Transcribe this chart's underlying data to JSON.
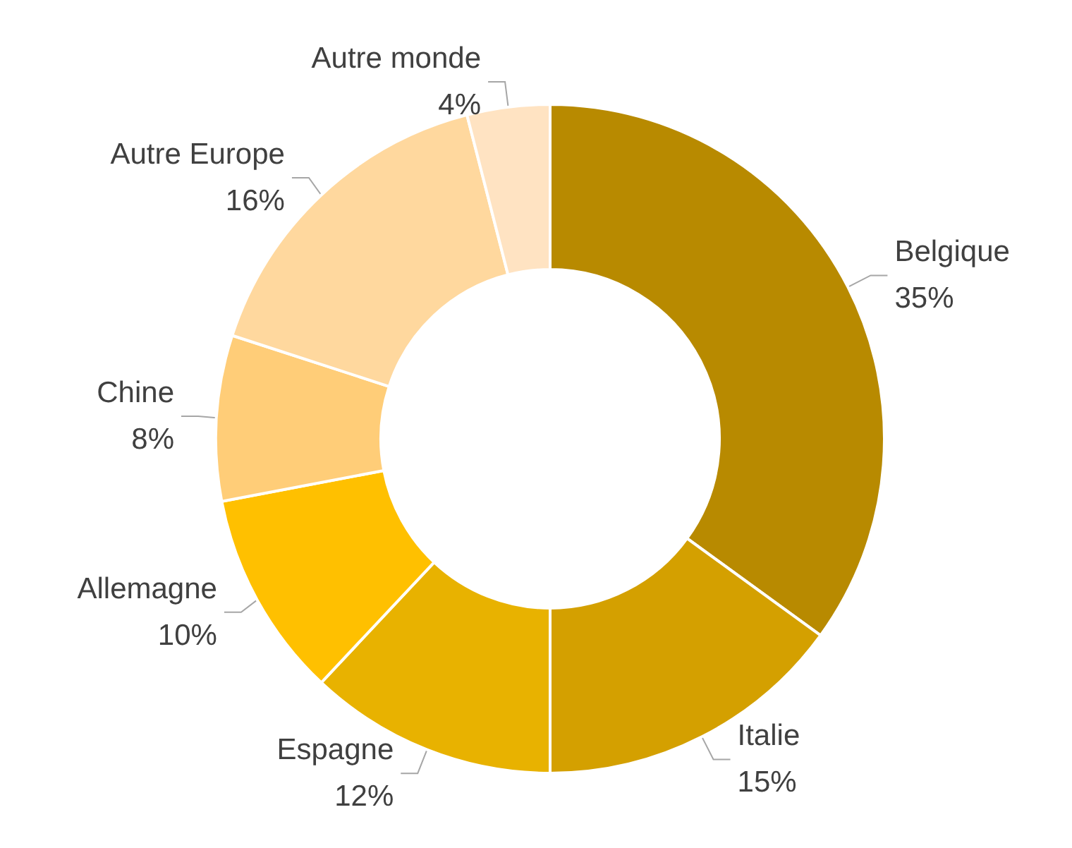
{
  "chart_data": {
    "type": "donut",
    "categories": [
      "Belgique",
      "Italie",
      "Espagne",
      "Allemagne",
      "Chine",
      "Autre Europe",
      "Autre monde"
    ],
    "values": [
      35,
      15,
      12,
      10,
      8,
      16,
      4
    ],
    "value_labels": [
      "35%",
      "15%",
      "12%",
      "10%",
      "8%",
      "16%",
      "4%"
    ],
    "colors": [
      "#b88a00",
      "#d4a000",
      "#e8b200",
      "#ffc000",
      "#ffcd78",
      "#ffd89e",
      "#ffe3c2"
    ],
    "legend": false
  }
}
